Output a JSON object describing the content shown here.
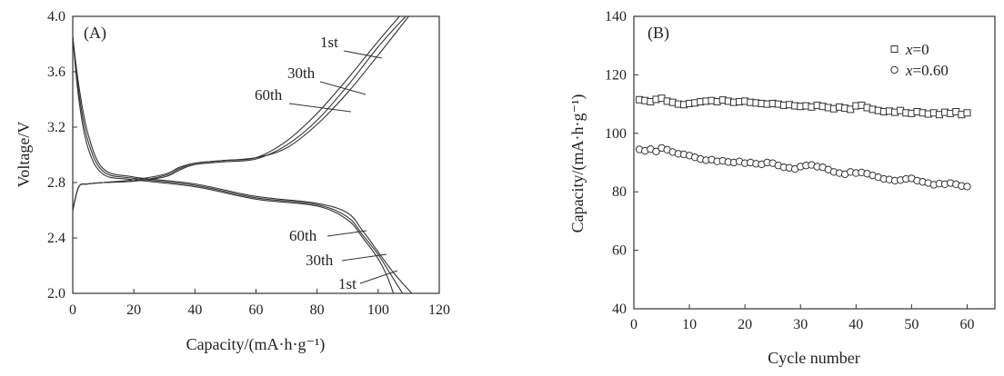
{
  "chart_data": [
    {
      "type": "line",
      "panel_label": "(A)",
      "xlabel": "Capacity/(mA·h·g⁻¹)",
      "ylabel": "Voltage/V",
      "xlim": [
        0,
        120
      ],
      "ylim": [
        2.0,
        4.0
      ],
      "xticks": [
        "0",
        "20",
        "40",
        "60",
        "80",
        "100",
        "120"
      ],
      "yticks": [
        "2.0",
        "2.4",
        "2.8",
        "3.2",
        "3.6",
        "4.0"
      ],
      "grid": false,
      "series": [
        {
          "name": "1st",
          "charge": [
            [
              0,
              2.6
            ],
            [
              2,
              2.77
            ],
            [
              5,
              2.79
            ],
            [
              10,
              2.8
            ],
            [
              20,
              2.81
            ],
            [
              30,
              2.85
            ],
            [
              35,
              2.9
            ],
            [
              40,
              2.94
            ],
            [
              50,
              2.96
            ],
            [
              60,
              2.98
            ],
            [
              70,
              3.1
            ],
            [
              80,
              3.3
            ],
            [
              90,
              3.55
            ],
            [
              100,
              3.82
            ],
            [
              107,
              4.0
            ]
          ],
          "discharge": [
            [
              0,
              3.85
            ],
            [
              2,
              3.5
            ],
            [
              5,
              3.15
            ],
            [
              10,
              2.9
            ],
            [
              20,
              2.84
            ],
            [
              40,
              2.79
            ],
            [
              60,
              2.7
            ],
            [
              80,
              2.65
            ],
            [
              90,
              2.58
            ],
            [
              95,
              2.45
            ],
            [
              100,
              2.3
            ],
            [
              105,
              2.15
            ],
            [
              111,
              2.0
            ]
          ]
        },
        {
          "name": "30th",
          "charge": [
            [
              0,
              2.6
            ],
            [
              2,
              2.77
            ],
            [
              5,
              2.79
            ],
            [
              10,
              2.8
            ],
            [
              20,
              2.81
            ],
            [
              30,
              2.84
            ],
            [
              35,
              2.89
            ],
            [
              40,
              2.93
            ],
            [
              50,
              2.95
            ],
            [
              60,
              2.97
            ],
            [
              70,
              3.07
            ],
            [
              80,
              3.25
            ],
            [
              90,
              3.5
            ],
            [
              100,
              3.78
            ],
            [
              109,
              4.0
            ]
          ],
          "discharge": [
            [
              0,
              3.85
            ],
            [
              2,
              3.45
            ],
            [
              5,
              3.1
            ],
            [
              10,
              2.88
            ],
            [
              20,
              2.83
            ],
            [
              40,
              2.78
            ],
            [
              60,
              2.69
            ],
            [
              80,
              2.64
            ],
            [
              90,
              2.55
            ],
            [
              95,
              2.42
            ],
            [
              100,
              2.28
            ],
            [
              104,
              2.14
            ],
            [
              108,
              2.0
            ]
          ]
        },
        {
          "name": "60th",
          "charge": [
            [
              0,
              2.6
            ],
            [
              2,
              2.77
            ],
            [
              5,
              2.79
            ],
            [
              10,
              2.8
            ],
            [
              20,
              2.82
            ],
            [
              30,
              2.86
            ],
            [
              35,
              2.91
            ],
            [
              40,
              2.94
            ],
            [
              50,
              2.96
            ],
            [
              60,
              2.98
            ],
            [
              70,
              3.05
            ],
            [
              80,
              3.22
            ],
            [
              90,
              3.45
            ],
            [
              100,
              3.72
            ],
            [
              110,
              4.0
            ]
          ],
          "discharge": [
            [
              0,
              3.85
            ],
            [
              2,
              3.4
            ],
            [
              5,
              3.05
            ],
            [
              10,
              2.86
            ],
            [
              20,
              2.82
            ],
            [
              40,
              2.77
            ],
            [
              60,
              2.68
            ],
            [
              80,
              2.63
            ],
            [
              90,
              2.53
            ],
            [
              95,
              2.4
            ],
            [
              100,
              2.25
            ],
            [
              103,
              2.12
            ],
            [
              105,
              2.0
            ]
          ]
        }
      ],
      "annotations": [
        "1st",
        "30th",
        "60th",
        "60th",
        "30th",
        "1st"
      ]
    },
    {
      "type": "scatter",
      "panel_label": "(B)",
      "xlabel": "Cycle number",
      "ylabel": "Capacity/(mA·h·g⁻¹)",
      "xlim": [
        0,
        65
      ],
      "ylim": [
        40,
        140
      ],
      "xticks": [
        "0",
        "10",
        "20",
        "30",
        "40",
        "50",
        "60"
      ],
      "yticks": [
        "40",
        "60",
        "80",
        "100",
        "120",
        "140"
      ],
      "grid": false,
      "legend_position": "top-right",
      "x": [
        1,
        2,
        3,
        4,
        5,
        6,
        7,
        8,
        9,
        10,
        11,
        12,
        13,
        14,
        15,
        16,
        17,
        18,
        19,
        20,
        21,
        22,
        23,
        24,
        25,
        26,
        27,
        28,
        29,
        30,
        31,
        32,
        33,
        34,
        35,
        36,
        37,
        38,
        39,
        40,
        41,
        42,
        43,
        44,
        45,
        46,
        47,
        48,
        49,
        50,
        51,
        52,
        53,
        54,
        55,
        56,
        57,
        58,
        59,
        60
      ],
      "series": [
        {
          "name": "x=0",
          "name_var": "x",
          "name_val": "=0",
          "marker": "square",
          "values": [
            111.5,
            111.2,
            110.8,
            111.6,
            112,
            111,
            110.6,
            110,
            109.8,
            110.2,
            110.4,
            110.8,
            111,
            111.2,
            110.8,
            111.4,
            111,
            110.6,
            110.8,
            111,
            110.6,
            110.4,
            110.2,
            110,
            110.2,
            110,
            109.6,
            109.8,
            109.4,
            109.2,
            109.4,
            109,
            109.6,
            109.2,
            108.8,
            108.4,
            109,
            108.6,
            108.2,
            109.4,
            109.6,
            108.8,
            108.2,
            107.8,
            107.4,
            107.6,
            107.2,
            107.8,
            107,
            106.8,
            107.4,
            107,
            106.6,
            107,
            106.4,
            107.2,
            106.8,
            107.4,
            106.4,
            107
          ]
        },
        {
          "name": "x=0.60",
          "name_var": "x",
          "name_val": "=0.60",
          "marker": "circle",
          "values": [
            94.5,
            94,
            94.6,
            93.8,
            95,
            94.4,
            93.6,
            93,
            92.8,
            92.4,
            91.8,
            91.2,
            90.8,
            91,
            90.4,
            90.6,
            90.2,
            90,
            90.4,
            89.8,
            90,
            89.6,
            89.4,
            90,
            89.8,
            89,
            88.4,
            88.2,
            87.8,
            88.6,
            89,
            89.2,
            88.6,
            88.4,
            87.6,
            86.8,
            86.4,
            86,
            86.8,
            86.4,
            86.6,
            86.2,
            85.6,
            85,
            84.4,
            84.2,
            83.8,
            84,
            84.4,
            84.6,
            83.8,
            83.4,
            83,
            82.4,
            82.8,
            82.6,
            83,
            82.6,
            82,
            81.8
          ]
        }
      ]
    }
  ]
}
